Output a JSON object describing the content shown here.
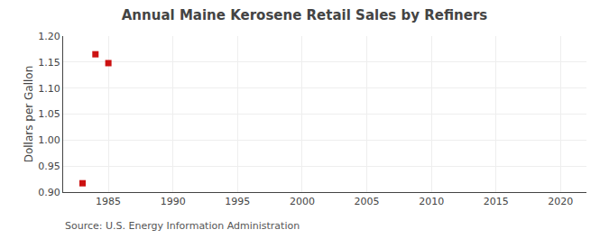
{
  "chart_data": {
    "type": "scatter",
    "title": "Annual Maine Kerosene Retail Sales by Refiners",
    "ylabel": "Dollars per Gallon",
    "annotations": [
      "Source: U.S. Energy Information Administration"
    ],
    "x": [
      1983,
      1984,
      1985
    ],
    "values": [
      0.917,
      1.165,
      1.148
    ],
    "color": "#cc1111",
    "marker": "square",
    "xlim": [
      1981.5,
      2022
    ],
    "ylim": [
      0.9,
      1.2
    ],
    "xticks": [
      1985,
      1990,
      1995,
      2000,
      2005,
      2010,
      2015,
      2020
    ],
    "yticks": [
      {
        "value": 0.9,
        "label": "0.90"
      },
      0.95,
      {
        "value": 1.0,
        "label": "1.00"
      },
      1.05,
      {
        "value": 1.1,
        "label": "1.10"
      },
      1.15,
      {
        "value": 1.2,
        "label": "1.20"
      }
    ],
    "grid": true
  }
}
